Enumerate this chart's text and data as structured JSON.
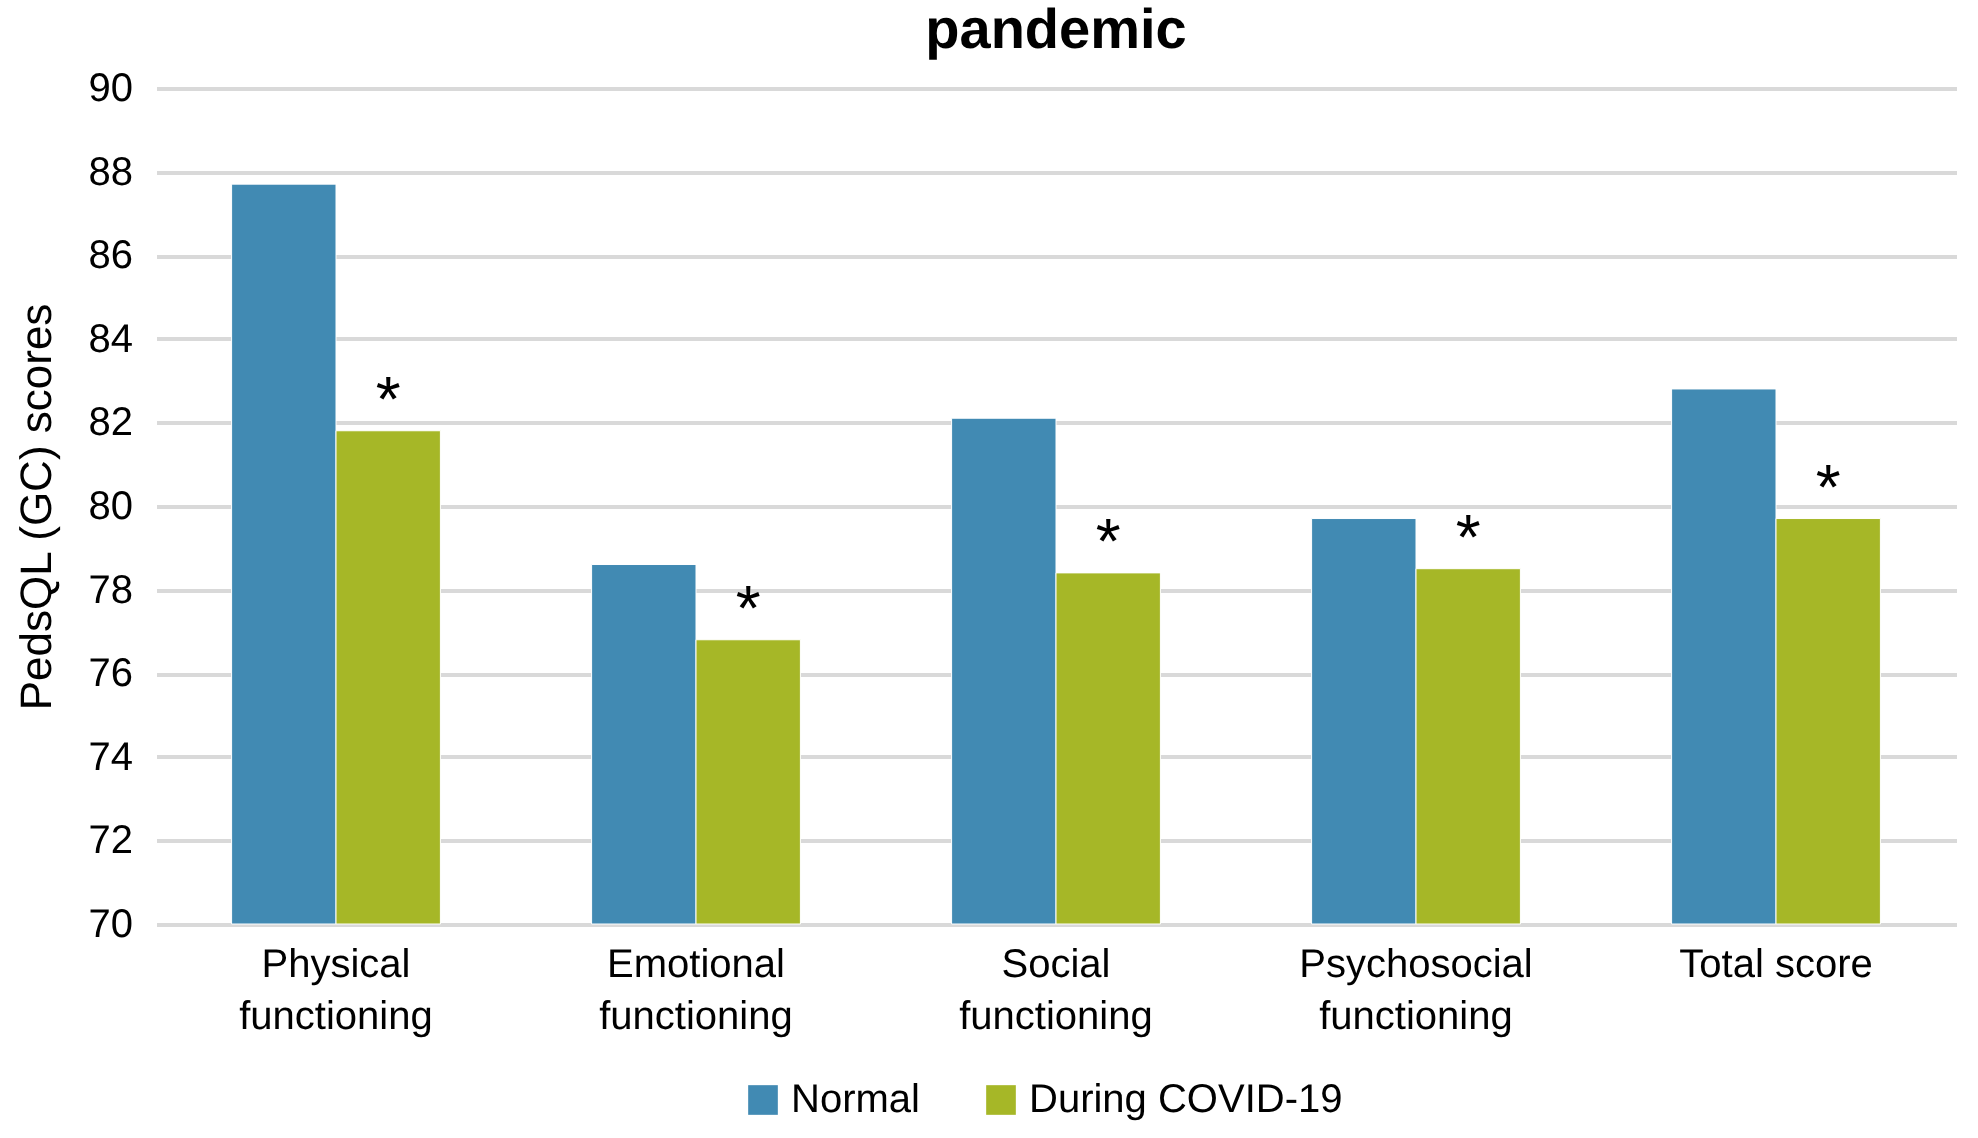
{
  "chart_data": {
    "type": "bar",
    "title": "pandemic",
    "ylabel": "PedsQL (GC) scores",
    "categories": [
      "Physical functioning",
      "Emotional functioning",
      "Social functioning",
      "Psychosocial functioning",
      "Total score"
    ],
    "series": [
      {
        "name": "Normal",
        "color": "#418ab3",
        "values": [
          87.7,
          78.6,
          82.1,
          79.7,
          82.8
        ]
      },
      {
        "name": "During COVID-19",
        "color": "#a6b727",
        "values": [
          81.8,
          76.8,
          78.4,
          78.5,
          79.7
        ]
      }
    ],
    "ylim": [
      70,
      90
    ],
    "yticks": [
      70,
      72,
      74,
      76,
      78,
      80,
      82,
      84,
      86,
      88,
      90
    ],
    "grid": "y",
    "legend": "bottom",
    "annotations": [
      {
        "text": "*",
        "x": "Physical functioning",
        "y": 81.8
      },
      {
        "text": "*",
        "x": "Emotional functioning",
        "y": 76.8
      },
      {
        "text": "*",
        "x": "Social functioning",
        "y": 78.4
      },
      {
        "text": "*",
        "x": "Psychosocial functioning",
        "y": 78.5
      },
      {
        "text": "*",
        "x": "Total score",
        "y": 79.7
      }
    ]
  }
}
